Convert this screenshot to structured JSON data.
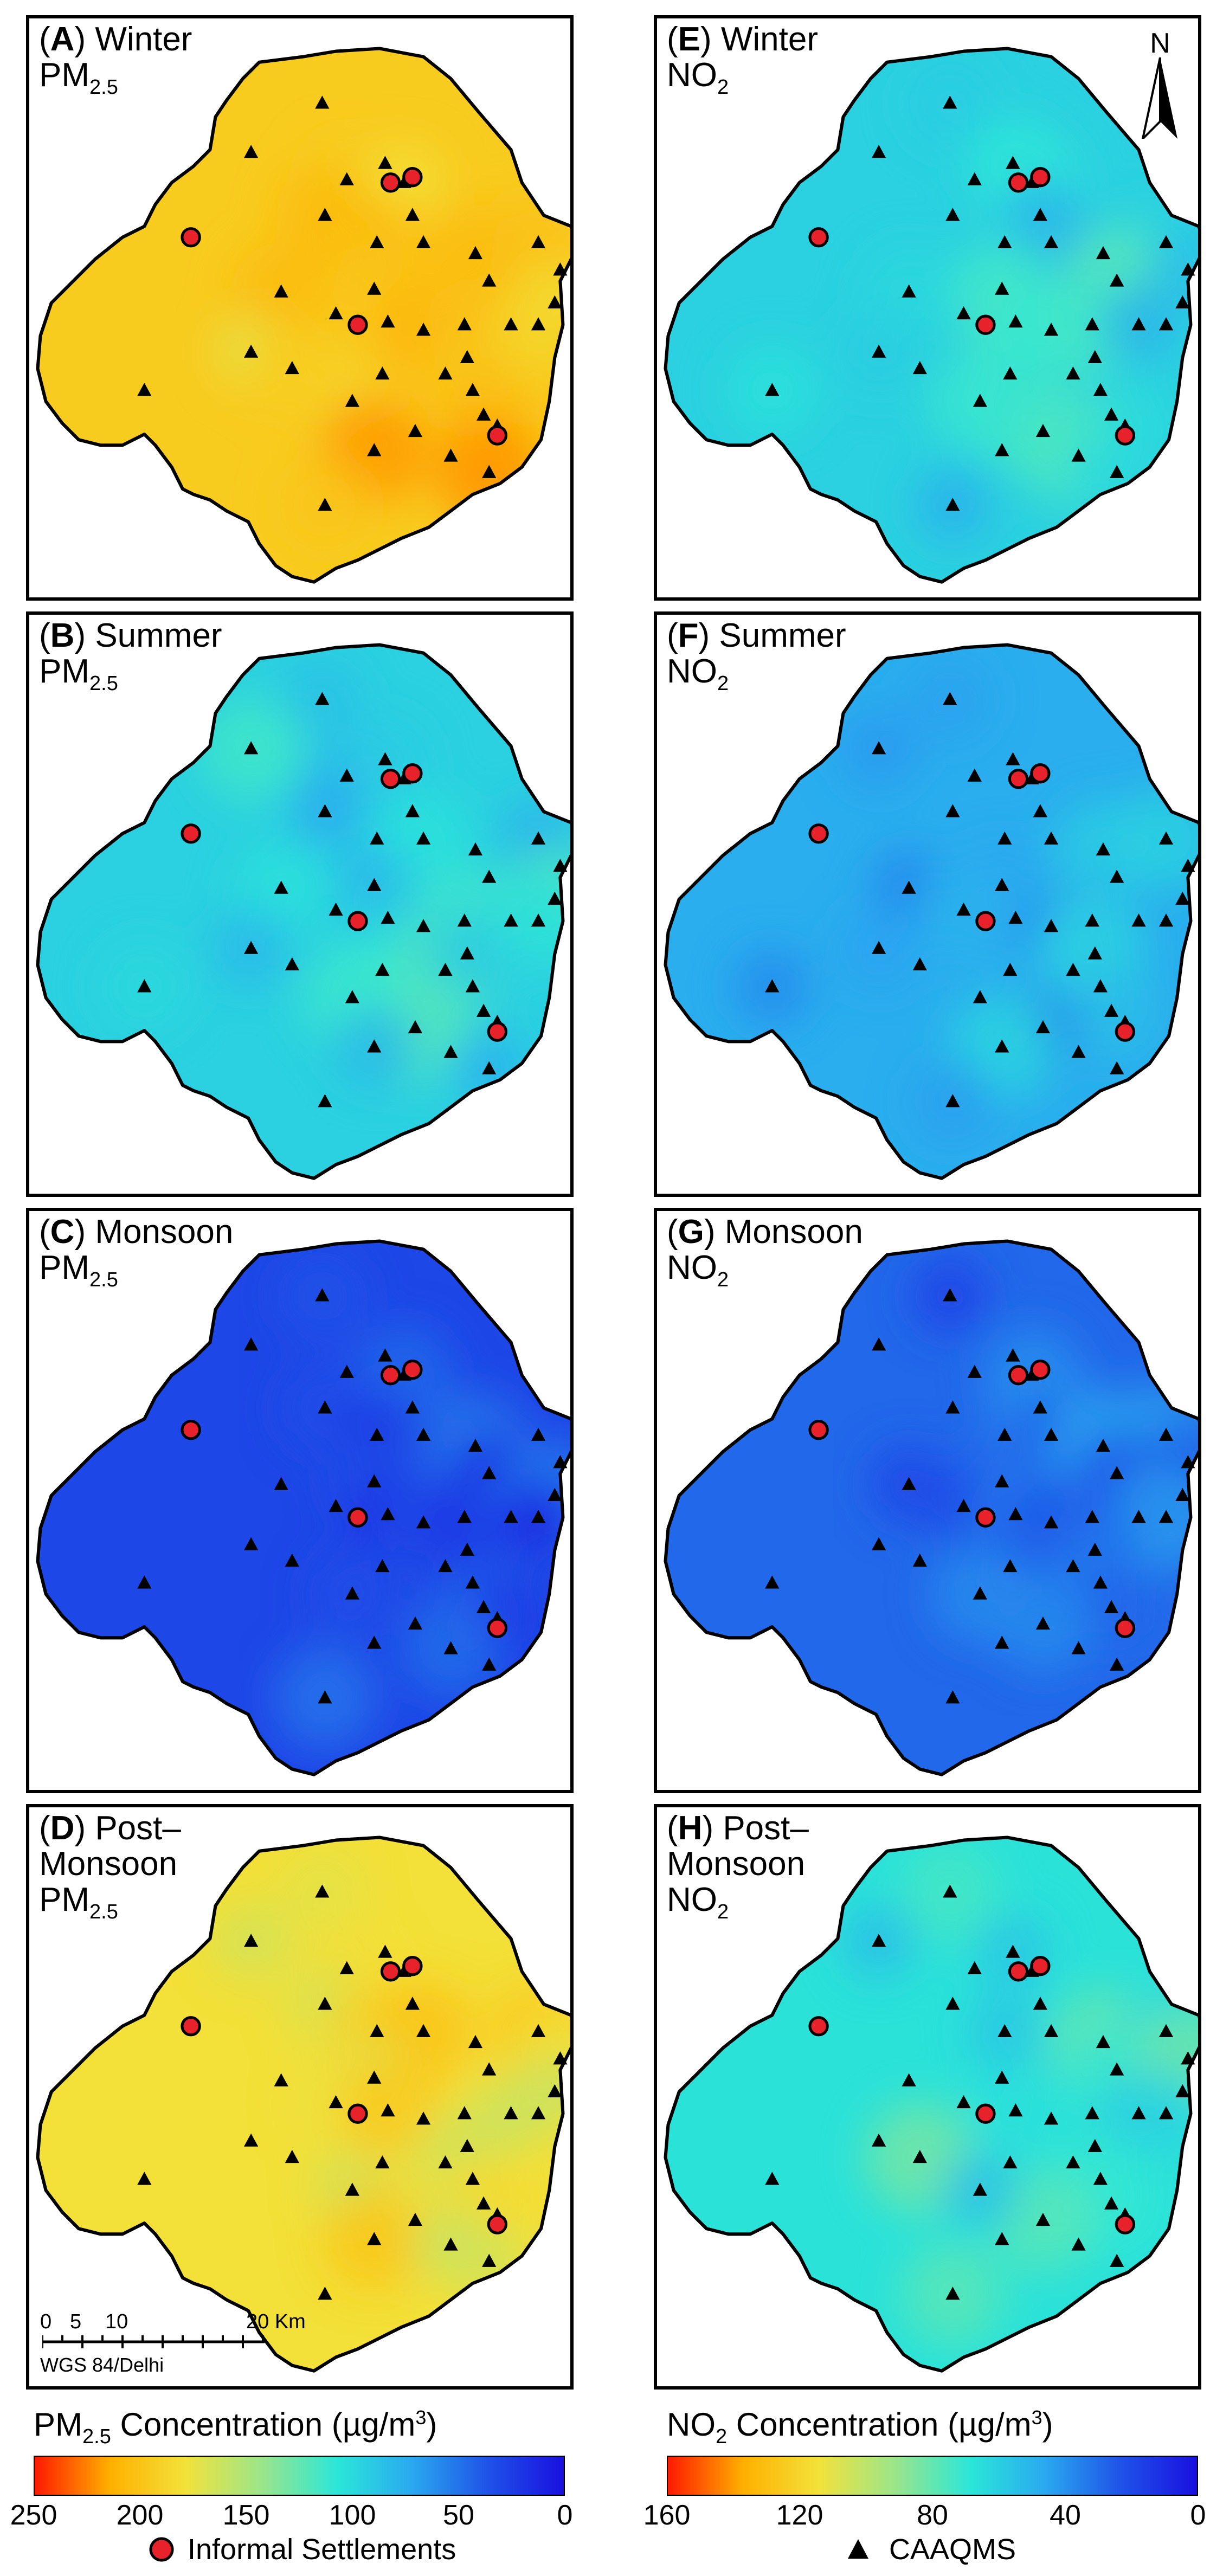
{
  "panels": [
    {
      "id": "A",
      "season": "Winter",
      "pollutant": "PM",
      "sub": "2.5",
      "var": "pm",
      "level": 0.78
    },
    {
      "id": "B",
      "season": "Summer",
      "pollutant": "PM",
      "sub": "2.5",
      "var": "pm",
      "level": 0.38
    },
    {
      "id": "C",
      "season": "Monsoon",
      "pollutant": "PM",
      "sub": "2.5",
      "var": "pm",
      "level": 0.12
    },
    {
      "id": "D",
      "season": "Post–\nMonsoon",
      "pollutant": "PM",
      "sub": "2.5",
      "var": "pm",
      "level": 0.72
    },
    {
      "id": "E",
      "season": "Winter",
      "pollutant": "NO",
      "sub": "2",
      "var": "no2",
      "level": 0.38
    },
    {
      "id": "F",
      "season": "Summer",
      "pollutant": "NO",
      "sub": "2",
      "var": "no2",
      "level": 0.3
    },
    {
      "id": "G",
      "season": "Monsoon",
      "pollutant": "NO",
      "sub": "2",
      "var": "no2",
      "level": 0.18
    },
    {
      "id": "H",
      "season": "Post–\nMonsoon",
      "pollutant": "NO",
      "sub": "2",
      "var": "no2",
      "level": 0.42
    }
  ],
  "north_label": "N",
  "scale_bar": {
    "labels": [
      "0",
      "5",
      "10",
      "20 Km"
    ],
    "crs": "WGS 84/Delhi"
  },
  "legends": {
    "pm": {
      "title_main": "PM",
      "title_sub": "2.5",
      "title_rest": " Concentration (µg/m",
      "title_sup": "3",
      "title_end": ")",
      "ticks": [
        "250",
        "200",
        "150",
        "100",
        "50",
        "0"
      ]
    },
    "no2": {
      "title_main": "NO",
      "title_sub": "2",
      "title_rest": " Concentration (µg/m",
      "title_sup": "3",
      "title_end": ")",
      "ticks": [
        "160",
        "120",
        "80",
        "40",
        "0"
      ]
    }
  },
  "key": {
    "settlements": "Informal Settlements",
    "stations": "CAAQMS"
  },
  "colors": {
    "scale": [
      "#ff1a00",
      "#ffb000",
      "#f2e23a",
      "#9be58a",
      "#2be6d8",
      "#2aa8f0",
      "#1f52e8",
      "#1a10e0"
    ],
    "settlement": "#e8222a",
    "station": "#000000",
    "outline": "#000000"
  }
}
